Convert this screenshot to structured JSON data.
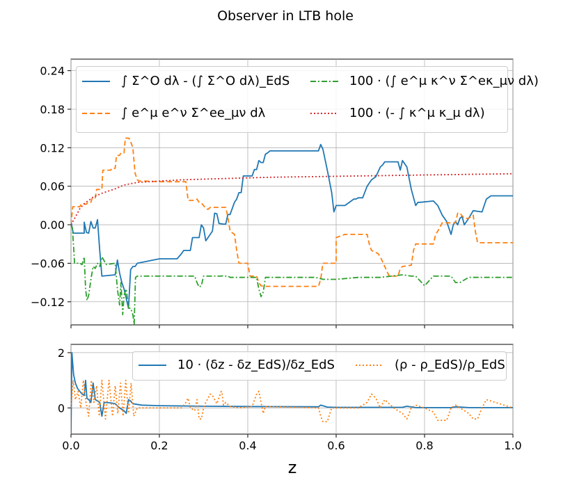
{
  "title": "Observer in LTB hole",
  "chart_data": [
    {
      "type": "line",
      "panel": "top",
      "xlim": [
        0.0,
        1.0
      ],
      "ylim": [
        -0.156,
        0.258
      ],
      "yticks": [
        -0.12,
        -0.06,
        0.0,
        0.06,
        0.12,
        0.18,
        0.24
      ],
      "ytick_labels": [
        "−0.12",
        "−0.06",
        "0.00",
        "0.06",
        "0.12",
        "0.18",
        "0.24"
      ],
      "grid": true,
      "legend_position": "top",
      "series": [
        {
          "name": "∫ Σ^O dλ - (∫ Σ^O dλ)_EdS",
          "color": "#1f77b4",
          "dash": "",
          "x": [
            0,
            0.005,
            0.03,
            0.03,
            0.035,
            0.04,
            0.045,
            0.05,
            0.055,
            0.06,
            0.065,
            0.07,
            0.1,
            0.105,
            0.11,
            0.115,
            0.12,
            0.125,
            0.13,
            0.135,
            0.14,
            0.145,
            0.15,
            0.2,
            0.24,
            0.25,
            0.255,
            0.27,
            0.275,
            0.28,
            0.29,
            0.295,
            0.3,
            0.305,
            0.31,
            0.32,
            0.325,
            0.33,
            0.335,
            0.345,
            0.35,
            0.355,
            0.36,
            0.37,
            0.375,
            0.38,
            0.385,
            0.39,
            0.41,
            0.415,
            0.42,
            0.425,
            0.43,
            0.435,
            0.44,
            0.445,
            0.45,
            0.56,
            0.565,
            0.57,
            0.58,
            0.59,
            0.595,
            0.6,
            0.62,
            0.64,
            0.645,
            0.65,
            0.66,
            0.67,
            0.675,
            0.68,
            0.69,
            0.7,
            0.705,
            0.71,
            0.74,
            0.745,
            0.75,
            0.76,
            0.77,
            0.78,
            0.785,
            0.79,
            0.82,
            0.83,
            0.84,
            0.85,
            0.86,
            0.865,
            0.87,
            0.875,
            0.88,
            0.885,
            0.89,
            0.9,
            0.91,
            0.93,
            0.935,
            0.94,
            0.95,
            1.0
          ],
          "y": [
            0.005,
            -0.013,
            -0.013,
            0.004,
            -0.012,
            -0.013,
            0.005,
            -0.005,
            -0.005,
            0.008,
            -0.04,
            -0.08,
            -0.078,
            -0.055,
            -0.075,
            -0.09,
            -0.1,
            -0.115,
            -0.13,
            -0.07,
            -0.065,
            -0.065,
            -0.06,
            -0.053,
            -0.053,
            -0.045,
            -0.04,
            -0.04,
            -0.02,
            -0.02,
            -0.02,
            0.0,
            -0.005,
            -0.025,
            -0.02,
            -0.01,
            0.018,
            0.017,
            0.002,
            0.001,
            0.001,
            0.016,
            0.016,
            0.035,
            0.04,
            0.05,
            0.05,
            0.076,
            0.076,
            0.086,
            0.086,
            0.1,
            0.097,
            0.097,
            0.11,
            0.112,
            0.115,
            0.115,
            0.125,
            0.118,
            0.085,
            0.05,
            0.02,
            0.03,
            0.03,
            0.04,
            0.04,
            0.042,
            0.042,
            0.06,
            0.065,
            0.07,
            0.075,
            0.09,
            0.093,
            0.098,
            0.098,
            0.085,
            0.1,
            0.09,
            0.055,
            0.03,
            0.035,
            0.035,
            0.037,
            0.03,
            0.015,
            0.005,
            -0.015,
            0.0,
            0.005,
            0.0,
            0.01,
            0.013,
            0.0,
            0.01,
            0.022,
            0.02,
            0.03,
            0.04,
            0.045,
            0.045
          ]
        },
        {
          "name": "∫ e^μ e^ν Σ^ee_μν dλ",
          "color": "#ff7f0e",
          "dash": "7,4",
          "x": [
            0,
            0.002,
            0.004,
            0.02,
            0.023,
            0.035,
            0.038,
            0.045,
            0.048,
            0.055,
            0.058,
            0.07,
            0.072,
            0.09,
            0.092,
            0.1,
            0.103,
            0.11,
            0.113,
            0.12,
            0.123,
            0.13,
            0.133,
            0.14,
            0.145,
            0.15,
            0.155,
            0.16,
            0.17,
            0.2,
            0.26,
            0.265,
            0.28,
            0.285,
            0.29,
            0.295,
            0.3,
            0.305,
            0.31,
            0.315,
            0.32,
            0.33,
            0.35,
            0.355,
            0.36,
            0.37,
            0.375,
            0.38,
            0.4,
            0.405,
            0.42,
            0.425,
            0.43,
            0.435,
            0.48,
            0.5,
            0.56,
            0.565,
            0.57,
            0.6,
            0.6,
            0.62,
            0.67,
            0.675,
            0.68,
            0.695,
            0.7,
            0.71,
            0.72,
            0.74,
            0.745,
            0.75,
            0.77,
            0.775,
            0.78,
            0.8,
            0.82,
            0.825,
            0.83,
            0.84,
            0.85,
            0.87,
            0.875,
            0.88,
            0.89,
            0.9,
            0.91,
            0.915,
            0.92,
            0.93,
            1.0
          ],
          "y": [
            0.0,
            0.015,
            0.028,
            0.028,
            0.032,
            0.032,
            0.035,
            0.035,
            0.042,
            0.042,
            0.055,
            0.055,
            0.085,
            0.085,
            0.088,
            0.088,
            0.108,
            0.108,
            0.112,
            0.112,
            0.135,
            0.135,
            0.133,
            0.12,
            0.08,
            0.07,
            0.068,
            0.068,
            0.068,
            0.067,
            0.067,
            0.038,
            0.038,
            0.04,
            0.035,
            0.034,
            0.03,
            0.025,
            0.024,
            0.027,
            0.027,
            0.027,
            0.027,
            0.012,
            -0.01,
            -0.015,
            -0.04,
            -0.06,
            -0.06,
            -0.08,
            -0.08,
            -0.09,
            -0.095,
            -0.096,
            -0.096,
            -0.096,
            -0.096,
            -0.085,
            -0.06,
            -0.06,
            -0.02,
            -0.015,
            -0.015,
            -0.03,
            -0.04,
            -0.045,
            -0.05,
            -0.065,
            -0.08,
            -0.08,
            -0.068,
            -0.065,
            -0.063,
            -0.04,
            -0.03,
            -0.03,
            -0.03,
            -0.015,
            -0.01,
            0.003,
            0.003,
            0.003,
            0.018,
            0.018,
            0.01,
            0.01,
            0.015,
            -0.01,
            -0.028,
            -0.028,
            -0.028
          ]
        },
        {
          "name": "100 · (∫ e^μ κ^ν Σ^eκ_μν dλ)",
          "color": "#2ca02c",
          "dash": "8,3,2,3",
          "x": [
            0,
            0.003,
            0.006,
            0.008,
            0.01,
            0.02,
            0.025,
            0.03,
            0.033,
            0.036,
            0.04,
            0.045,
            0.05,
            0.055,
            0.06,
            0.065,
            0.07,
            0.08,
            0.1,
            0.105,
            0.11,
            0.113,
            0.117,
            0.12,
            0.125,
            0.13,
            0.135,
            0.14,
            0.143,
            0.146,
            0.15,
            0.16,
            0.2,
            0.28,
            0.285,
            0.29,
            0.295,
            0.3,
            0.34,
            0.345,
            0.35,
            0.355,
            0.36,
            0.4,
            0.42,
            0.425,
            0.43,
            0.435,
            0.44,
            0.5,
            0.55,
            0.56,
            0.57,
            0.6,
            0.65,
            0.7,
            0.75,
            0.77,
            0.78,
            0.8,
            0.82,
            0.86,
            0.865,
            0.87,
            0.88,
            0.9,
            1.0
          ],
          "y": [
            0.0,
            -0.005,
            -0.035,
            -0.06,
            -0.06,
            -0.06,
            -0.062,
            -0.05,
            -0.1,
            -0.118,
            -0.11,
            -0.085,
            -0.065,
            -0.068,
            -0.06,
            -0.065,
            -0.05,
            -0.062,
            -0.06,
            -0.1,
            -0.125,
            -0.09,
            -0.14,
            -0.11,
            -0.1,
            -0.13,
            -0.13,
            -0.14,
            -0.155,
            -0.082,
            -0.08,
            -0.08,
            -0.08,
            -0.08,
            -0.09,
            -0.097,
            -0.095,
            -0.08,
            -0.08,
            -0.079,
            -0.08,
            -0.08,
            -0.082,
            -0.082,
            -0.082,
            -0.1,
            -0.112,
            -0.105,
            -0.082,
            -0.082,
            -0.082,
            -0.083,
            -0.085,
            -0.085,
            -0.082,
            -0.082,
            -0.078,
            -0.08,
            -0.08,
            -0.095,
            -0.08,
            -0.08,
            -0.085,
            -0.09,
            -0.09,
            -0.082,
            -0.082
          ]
        },
        {
          "name": "100 · (- ∫ κ^μ κ_μ dλ)",
          "color": "#d62728",
          "dash": "2,3",
          "x": [
            0,
            0.01,
            0.02,
            0.03,
            0.05,
            0.07,
            0.1,
            0.12,
            0.15,
            0.2,
            0.25,
            0.3,
            0.35,
            0.4,
            0.45,
            0.5,
            0.55,
            0.6,
            0.65,
            0.7,
            0.75,
            0.8,
            0.85,
            0.9,
            0.95,
            1.0
          ],
          "y": [
            0.0,
            0.012,
            0.025,
            0.033,
            0.043,
            0.049,
            0.056,
            0.062,
            0.066,
            0.068,
            0.07,
            0.071,
            0.072,
            0.073,
            0.074,
            0.0745,
            0.075,
            0.0755,
            0.076,
            0.0765,
            0.077,
            0.0775,
            0.078,
            0.0785,
            0.079,
            0.0795
          ]
        }
      ]
    },
    {
      "type": "line",
      "panel": "bottom",
      "xlim": [
        0.0,
        1.0
      ],
      "ylim": [
        -0.95,
        2.3
      ],
      "xticks": [
        0.0,
        0.2,
        0.4,
        0.6,
        0.8,
        1.0
      ],
      "xtick_labels": [
        "0.0",
        "0.2",
        "0.4",
        "0.6",
        "0.8",
        "1.0"
      ],
      "yticks": [
        0,
        2
      ],
      "ytick_labels": [
        "0",
        "2"
      ],
      "xlabel": "z",
      "grid": true,
      "legend_position": "top-right",
      "series": [
        {
          "name": "10 · (δz - δz_EdS)/δz_EdS",
          "color": "#1f77b4",
          "dash": "",
          "x": [
            0,
            0.002,
            0.004,
            0.006,
            0.01,
            0.015,
            0.02,
            0.025,
            0.03,
            0.033,
            0.036,
            0.04,
            0.045,
            0.05,
            0.055,
            0.06,
            0.065,
            0.07,
            0.075,
            0.09,
            0.1,
            0.11,
            0.12,
            0.125,
            0.13,
            0.135,
            0.14,
            0.16,
            0.2,
            0.3,
            0.4,
            0.56,
            0.565,
            0.58,
            0.6,
            0.7,
            0.75,
            0.76,
            0.78,
            0.8,
            0.82,
            0.86,
            0.87,
            0.9,
            1.0
          ],
          "y": [
            -0.95,
            2.0,
            1.6,
            1.2,
            0.9,
            0.7,
            0.6,
            0.5,
            0.45,
            1.0,
            0.35,
            0.3,
            0.2,
            0.9,
            0.3,
            0.25,
            0.2,
            -0.3,
            0.2,
            0.18,
            0.15,
            0.0,
            -0.1,
            -0.2,
            0.3,
            0.25,
            0.15,
            0.1,
            0.08,
            0.06,
            0.05,
            0.04,
            0.1,
            0.03,
            0.02,
            0.02,
            0.02,
            0.06,
            0.01,
            0.01,
            0.01,
            0.01,
            0.04,
            0.01,
            0.01
          ]
        },
        {
          "name": "(ρ - ρ_EdS)/ρ_EdS",
          "color": "#ff7f0e",
          "dash": "2,3",
          "x": [
            0.0,
            0.005,
            0.01,
            0.016,
            0.022,
            0.028,
            0.034,
            0.04,
            0.046,
            0.052,
            0.058,
            0.064,
            0.07,
            0.078,
            0.086,
            0.094,
            0.1,
            0.106,
            0.112,
            0.118,
            0.124,
            0.13,
            0.136,
            0.142,
            0.15,
            0.2,
            0.25,
            0.26,
            0.265,
            0.27,
            0.28,
            0.285,
            0.29,
            0.295,
            0.3,
            0.305,
            0.31,
            0.315,
            0.32,
            0.33,
            0.34,
            0.342,
            0.345,
            0.35,
            0.36,
            0.38,
            0.41,
            0.42,
            0.425,
            0.43,
            0.435,
            0.44,
            0.56,
            0.565,
            0.57,
            0.58,
            0.59,
            0.6,
            0.65,
            0.67,
            0.68,
            0.69,
            0.7,
            0.71,
            0.73,
            0.75,
            0.76,
            0.77,
            0.78,
            0.8,
            0.82,
            0.83,
            0.85,
            0.86,
            0.87,
            0.88,
            0.9,
            0.91,
            0.92,
            0.93,
            0.94,
            1.0
          ],
          "y": [
            0.0,
            1.0,
            0.3,
            0.6,
            0.0,
            1.0,
            0.2,
            -0.3,
            1.0,
            0.2,
            0.8,
            -0.3,
            1.0,
            -0.4,
            1.0,
            -0.3,
            0.8,
            -0.2,
            0.9,
            -0.3,
            1.0,
            -0.2,
            0.9,
            -0.3,
            0.0,
            0.0,
            0.0,
            0.2,
            0.35,
            0.0,
            -0.1,
            0.3,
            -0.4,
            -0.4,
            0.0,
            0.2,
            0.35,
            0.5,
            0.45,
            0.15,
            0.6,
            0.5,
            0.1,
            0.2,
            0.05,
            0.0,
            0.05,
            0.5,
            0.6,
            0.2,
            -0.2,
            0.05,
            0.0,
            -0.3,
            -0.5,
            -0.5,
            0.0,
            0.0,
            0.0,
            0.2,
            0.5,
            0.35,
            0.0,
            0.3,
            0.0,
            -0.2,
            -0.4,
            0.0,
            0.1,
            0.0,
            -0.15,
            -0.45,
            -0.45,
            0.0,
            0.1,
            0.0,
            -0.2,
            -0.4,
            -0.4,
            0.0,
            0.3,
            0.0
          ]
        }
      ]
    }
  ]
}
